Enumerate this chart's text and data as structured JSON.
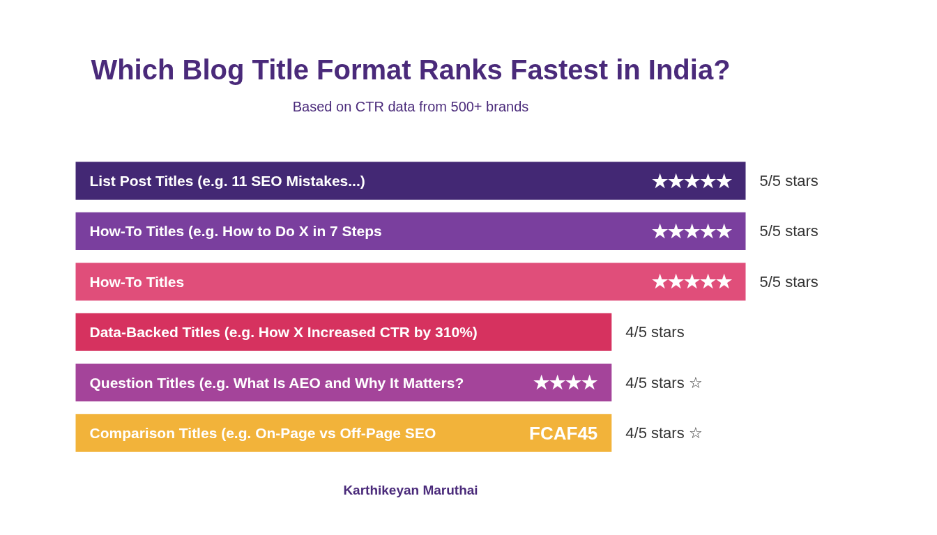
{
  "chart_data": {
    "type": "bar",
    "orientation": "horizontal",
    "title": "Which Blog Title Format Ranks Fastest in India?",
    "subtitle": "Based on CTR data from 500+ brands",
    "categories": [
      "List Post Titles (e.g. 11 SEO Mistakes...)",
      "How-To Titles (e.g. How to Do X in 7 Steps",
      "How-To Titles",
      "Data-Backed Titles (e.g. How X Increased CTR by 310%)",
      "Question Titles (e.g. What Is AEO and Why It Matters?",
      "Comparison Titles (e.g. On-Page vs Off-Page SEO"
    ],
    "values": [
      5,
      5,
      5,
      4,
      4,
      4
    ],
    "colors": [
      "#432874",
      "#7a3f9e",
      "#e04e7a",
      "#d6325f",
      "#a4449a",
      "#f2b33a"
    ],
    "value_labels": [
      "5/5 stars",
      "5/5 stars",
      "5/5 stars",
      "4/5 stars",
      "4/5 stars ☆",
      "4/5 stars ☆"
    ],
    "annotations": [
      {
        "text": "★★★★★",
        "y": "List Post Titles (e.g. 11 SEO Mistakes...)"
      },
      {
        "text": "★★★★★",
        "y": "How-To Titles (e.g. How to Do X in 7 Steps"
      },
      {
        "text": "★★★★★",
        "y": "How-To Titles"
      },
      {
        "text": "★★★★",
        "y": "Question Titles (e.g. What Is AEO and Why It Matters?"
      },
      {
        "text": "FCAF45",
        "y": "Comparison Titles (e.g. On-Page vs Off-Page SEO"
      },
      "Karthikeyan Maruthai"
    ]
  }
}
